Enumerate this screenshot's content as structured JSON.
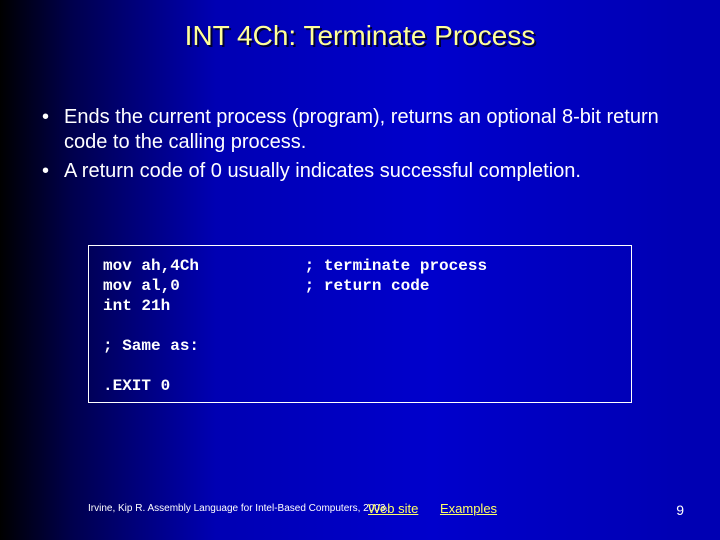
{
  "title": "INT 4Ch: Terminate Process",
  "bullets": {
    "b1": "Ends the current process (program), returns an optional 8-bit return code to the calling process.",
    "b2": "A return code of 0 usually indicates successful completion."
  },
  "code": "mov ah,4Ch           ; terminate process\nmov al,0             ; return code\nint 21h\n\n; Same as:\n\n.EXIT 0",
  "footer": {
    "citation": "Irvine, Kip R. Assembly Language for Intel-Based Computers, 2003.",
    "link1": "Web site",
    "link2": "Examples"
  },
  "pageNumber": "9",
  "colors": {
    "title": "#ffff99",
    "body": "#ffffff",
    "link": "#ffff66",
    "border": "#ffffff"
  }
}
